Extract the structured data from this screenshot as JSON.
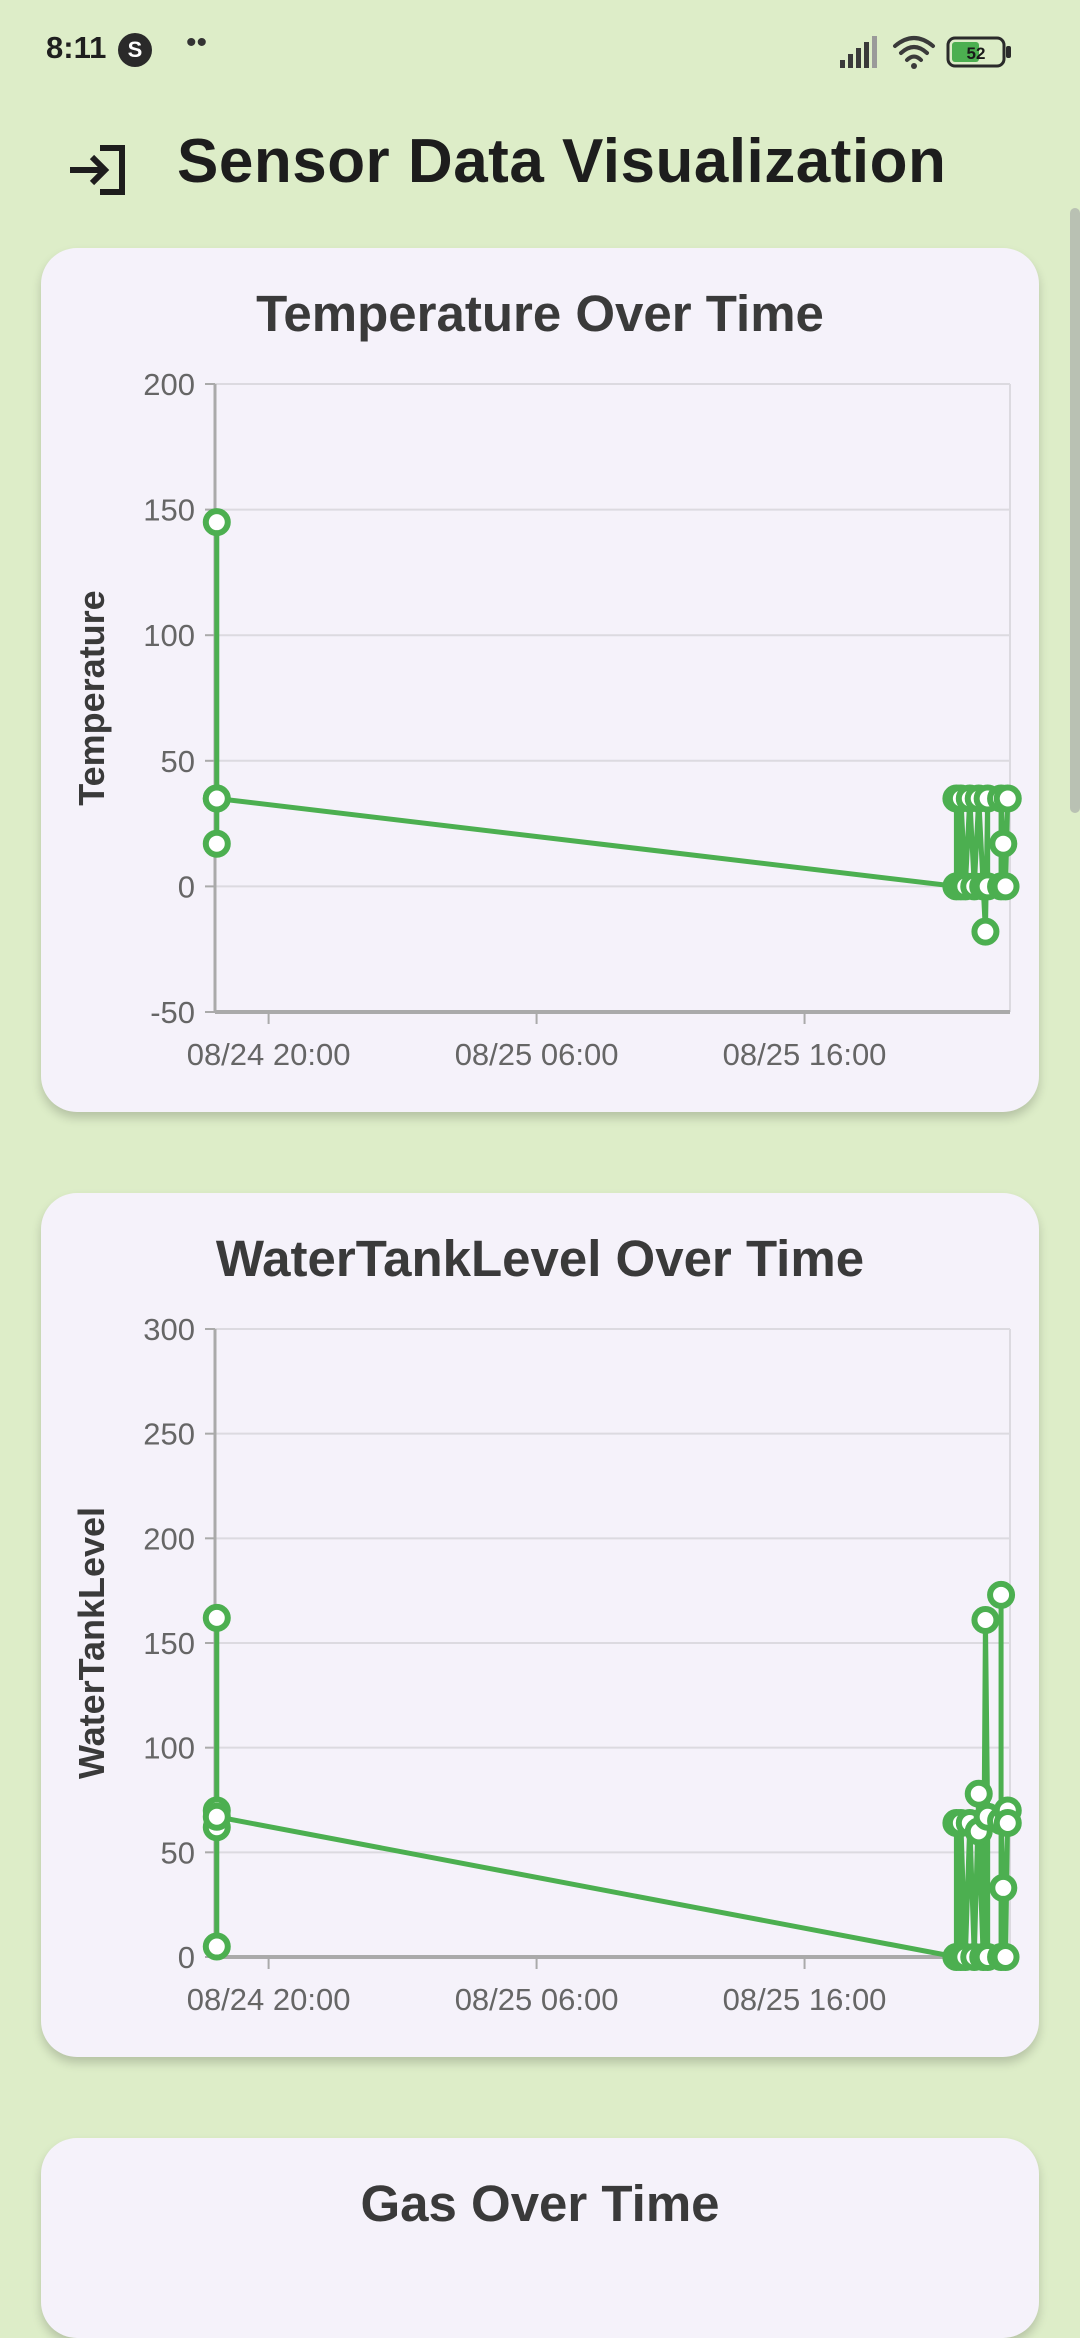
{
  "status": {
    "time": "8:11",
    "app_icon_letter": "S",
    "dots": "••",
    "battery": "52"
  },
  "app_bar": {
    "title": "Sensor Data Visualization",
    "icon": "login-icon"
  },
  "colors": {
    "background": "#DDEDC8",
    "card": "#F5F2FA",
    "series": "#4CAF50"
  },
  "charts": [
    {
      "title": "Temperature Over Time",
      "chart_data": {
        "type": "line",
        "title": "Temperature Over Time",
        "xlabel": "",
        "ylabel": "Temperature",
        "y_ticks": [
          200,
          150,
          100,
          50,
          0,
          -50
        ],
        "x_ticks": [
          "08/24 20:00",
          "08/25 06:00",
          "08/25 16:00"
        ],
        "ylim": [
          -50,
          200
        ],
        "xlim": [
          "08/24 18:00",
          "08/25 23:40"
        ],
        "grid": true,
        "series": [
          {
            "points": [
              [
                "08/24 18:04",
                145
              ],
              [
                "08/24 18:04",
                35
              ],
              [
                "08/24 18:04",
                17
              ],
              [
                "08/24 18:04",
                35
              ],
              [
                "08/25 21:40",
                0
              ],
              [
                "08/25 21:40",
                35
              ],
              [
                "08/25 21:50",
                0
              ],
              [
                "08/25 21:50",
                35
              ],
              [
                "08/25 22:00",
                0
              ],
              [
                "08/25 22:10",
                35
              ],
              [
                "08/25 22:20",
                0
              ],
              [
                "08/25 22:30",
                35
              ],
              [
                "08/25 22:40",
                0
              ],
              [
                "08/25 22:45",
                -18
              ],
              [
                "08/25 22:50",
                35
              ],
              [
                "08/25 22:50",
                0
              ],
              [
                "08/25 23:20",
                0
              ],
              [
                "08/25 23:20",
                35
              ],
              [
                "08/25 23:25",
                17
              ],
              [
                "08/25 23:30",
                0
              ],
              [
                "08/25 23:35",
                35
              ]
            ]
          }
        ]
      }
    },
    {
      "title": "WaterTankLevel Over Time",
      "chart_data": {
        "type": "line",
        "title": "WaterTankLevel Over Time",
        "xlabel": "",
        "ylabel": "WaterTankLevel",
        "y_ticks": [
          300,
          250,
          200,
          150,
          100,
          50,
          0
        ],
        "x_ticks": [
          "08/24 20:00",
          "08/25 06:00",
          "08/25 16:00"
        ],
        "ylim": [
          0,
          300
        ],
        "xlim": [
          "08/24 18:00",
          "08/25 23:40"
        ],
        "grid": true,
        "series": [
          {
            "points": [
              [
                "08/24 18:04",
                162
              ],
              [
                "08/24 18:04",
                70
              ],
              [
                "08/24 18:04",
                62
              ],
              [
                "08/24 18:04",
                5
              ],
              [
                "08/24 18:04",
                67
              ],
              [
                "08/25 21:40",
                0
              ],
              [
                "08/25 21:40",
                64
              ],
              [
                "08/25 21:50",
                0
              ],
              [
                "08/25 21:50",
                64
              ],
              [
                "08/25 22:00",
                0
              ],
              [
                "08/25 22:10",
                64
              ],
              [
                "08/25 22:20",
                0
              ],
              [
                "08/25 22:30",
                78
              ],
              [
                "08/25 22:30",
                60
              ],
              [
                "08/25 22:40",
                0
              ],
              [
                "08/25 22:45",
                161
              ],
              [
                "08/25 22:50",
                67
              ],
              [
                "08/25 22:50",
                0
              ],
              [
                "08/25 23:20",
                0
              ],
              [
                "08/25 23:20",
                173
              ],
              [
                "08/25 23:20",
                65
              ],
              [
                "08/25 23:25",
                33
              ],
              [
                "08/25 23:30",
                0
              ],
              [
                "08/25 23:35",
                70
              ],
              [
                "08/25 23:35",
                64
              ]
            ]
          }
        ]
      }
    },
    {
      "title": "Gas Over Time"
    }
  ]
}
